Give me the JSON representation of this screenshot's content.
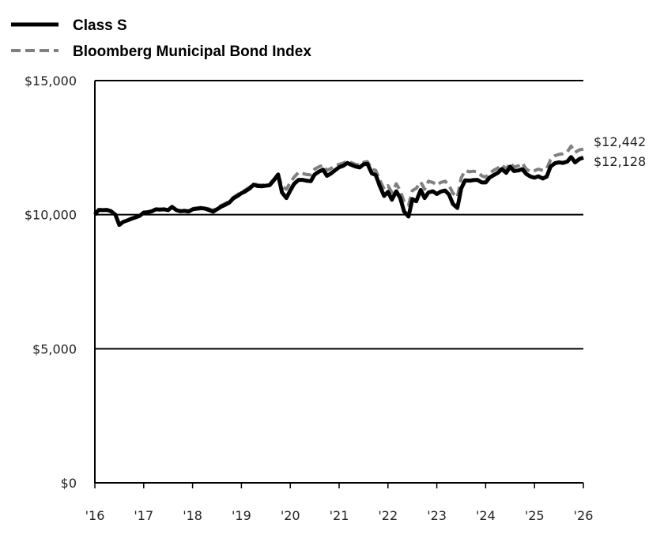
{
  "chart_data": {
    "type": "line",
    "title": "",
    "xlabel": "",
    "ylabel": "",
    "ylim": [
      0,
      15000
    ],
    "xlim": [
      2016,
      2026
    ],
    "y_ticks": [
      0,
      5000,
      10000,
      15000
    ],
    "y_tick_labels": [
      "$0",
      "$5,000",
      "$10,000",
      "$15,000"
    ],
    "x_ticks": [
      2016,
      2017,
      2018,
      2019,
      2020,
      2021,
      2022,
      2023,
      2024,
      2025,
      2026
    ],
    "x_tick_labels": [
      "'16",
      "'17",
      "'18",
      "'19",
      "'20",
      "'21",
      "'22",
      "'23",
      "'24",
      "'25",
      "'26"
    ],
    "grid": "horizontal",
    "legend_position": "top-left",
    "series": [
      {
        "name": "Class S",
        "style": "solid",
        "color": "#000000",
        "end_label": "$12,128",
        "points": [
          [
            2016.0,
            10000
          ],
          [
            2016.08,
            10180
          ],
          [
            2016.17,
            10170
          ],
          [
            2016.25,
            10180
          ],
          [
            2016.33,
            10130
          ],
          [
            2016.42,
            10000
          ],
          [
            2016.5,
            9620
          ],
          [
            2016.58,
            9730
          ],
          [
            2016.67,
            9790
          ],
          [
            2016.75,
            9850
          ],
          [
            2016.83,
            9900
          ],
          [
            2016.92,
            9960
          ],
          [
            2017.0,
            10080
          ],
          [
            2017.08,
            10090
          ],
          [
            2017.17,
            10130
          ],
          [
            2017.25,
            10200
          ],
          [
            2017.33,
            10190
          ],
          [
            2017.42,
            10200
          ],
          [
            2017.5,
            10170
          ],
          [
            2017.58,
            10290
          ],
          [
            2017.67,
            10170
          ],
          [
            2017.75,
            10130
          ],
          [
            2017.83,
            10140
          ],
          [
            2017.92,
            10120
          ],
          [
            2018.0,
            10200
          ],
          [
            2018.08,
            10220
          ],
          [
            2018.17,
            10240
          ],
          [
            2018.25,
            10230
          ],
          [
            2018.33,
            10180
          ],
          [
            2018.42,
            10110
          ],
          [
            2018.5,
            10200
          ],
          [
            2018.58,
            10290
          ],
          [
            2018.67,
            10370
          ],
          [
            2018.75,
            10450
          ],
          [
            2018.83,
            10600
          ],
          [
            2018.92,
            10700
          ],
          [
            2019.0,
            10800
          ],
          [
            2019.08,
            10870
          ],
          [
            2019.17,
            10980
          ],
          [
            2019.25,
            11120
          ],
          [
            2019.33,
            11070
          ],
          [
            2019.42,
            11060
          ],
          [
            2019.5,
            11080
          ],
          [
            2019.58,
            11100
          ],
          [
            2019.67,
            11300
          ],
          [
            2019.75,
            11500
          ],
          [
            2019.83,
            10830
          ],
          [
            2019.92,
            10620
          ],
          [
            2020.0,
            10900
          ],
          [
            2020.08,
            11150
          ],
          [
            2020.17,
            11300
          ],
          [
            2020.25,
            11300
          ],
          [
            2020.33,
            11270
          ],
          [
            2020.42,
            11250
          ],
          [
            2020.5,
            11500
          ],
          [
            2020.58,
            11600
          ],
          [
            2020.67,
            11680
          ],
          [
            2020.75,
            11450
          ],
          [
            2020.83,
            11530
          ],
          [
            2020.92,
            11660
          ],
          [
            2021.0,
            11770
          ],
          [
            2021.08,
            11820
          ],
          [
            2021.17,
            11930
          ],
          [
            2021.25,
            11860
          ],
          [
            2021.33,
            11800
          ],
          [
            2021.42,
            11760
          ],
          [
            2021.5,
            11880
          ],
          [
            2021.58,
            11900
          ],
          [
            2021.67,
            11540
          ],
          [
            2021.75,
            11480
          ],
          [
            2021.83,
            11080
          ],
          [
            2021.92,
            10700
          ],
          [
            2022.0,
            10850
          ],
          [
            2022.08,
            10560
          ],
          [
            2022.17,
            10870
          ],
          [
            2022.25,
            10620
          ],
          [
            2022.33,
            10120
          ],
          [
            2022.42,
            9930
          ],
          [
            2022.5,
            10580
          ],
          [
            2022.58,
            10500
          ],
          [
            2022.67,
            10920
          ],
          [
            2022.75,
            10620
          ],
          [
            2022.83,
            10830
          ],
          [
            2022.92,
            10870
          ],
          [
            2023.0,
            10770
          ],
          [
            2023.08,
            10860
          ],
          [
            2023.17,
            10900
          ],
          [
            2023.25,
            10750
          ],
          [
            2023.33,
            10400
          ],
          [
            2023.42,
            10250
          ],
          [
            2023.5,
            10980
          ],
          [
            2023.58,
            11280
          ],
          [
            2023.67,
            11270
          ],
          [
            2023.75,
            11290
          ],
          [
            2023.83,
            11300
          ],
          [
            2023.92,
            11200
          ],
          [
            2024.0,
            11200
          ],
          [
            2024.08,
            11380
          ],
          [
            2024.17,
            11480
          ],
          [
            2024.25,
            11560
          ],
          [
            2024.33,
            11700
          ],
          [
            2024.42,
            11560
          ],
          [
            2024.5,
            11790
          ],
          [
            2024.58,
            11630
          ],
          [
            2024.67,
            11650
          ],
          [
            2024.75,
            11700
          ],
          [
            2024.83,
            11520
          ],
          [
            2024.92,
            11420
          ],
          [
            2025.0,
            11380
          ],
          [
            2025.08,
            11430
          ],
          [
            2025.17,
            11350
          ],
          [
            2025.25,
            11420
          ],
          [
            2025.33,
            11800
          ],
          [
            2025.42,
            11920
          ],
          [
            2025.5,
            11950
          ],
          [
            2025.58,
            11930
          ],
          [
            2025.67,
            11980
          ],
          [
            2025.75,
            12150
          ],
          [
            2025.83,
            11950
          ],
          [
            2025.92,
            12080
          ],
          [
            2026.0,
            12128
          ]
        ]
      },
      {
        "name": "Bloomberg Municipal Bond Index",
        "style": "dashed",
        "color": "#808080",
        "end_label": "$12,442",
        "points": [
          [
            2016.0,
            10000
          ],
          [
            2016.08,
            10170
          ],
          [
            2016.17,
            10160
          ],
          [
            2016.25,
            10170
          ],
          [
            2016.33,
            10120
          ],
          [
            2016.42,
            10000
          ],
          [
            2016.5,
            9650
          ],
          [
            2016.58,
            9740
          ],
          [
            2016.67,
            9800
          ],
          [
            2016.75,
            9860
          ],
          [
            2016.83,
            9910
          ],
          [
            2016.92,
            9970
          ],
          [
            2017.0,
            10090
          ],
          [
            2017.08,
            10100
          ],
          [
            2017.17,
            10140
          ],
          [
            2017.25,
            10210
          ],
          [
            2017.33,
            10200
          ],
          [
            2017.42,
            10210
          ],
          [
            2017.5,
            10180
          ],
          [
            2017.58,
            10290
          ],
          [
            2017.67,
            10180
          ],
          [
            2017.75,
            10150
          ],
          [
            2017.83,
            10160
          ],
          [
            2017.92,
            10150
          ],
          [
            2018.0,
            10230
          ],
          [
            2018.08,
            10250
          ],
          [
            2018.17,
            10270
          ],
          [
            2018.25,
            10260
          ],
          [
            2018.33,
            10220
          ],
          [
            2018.42,
            10160
          ],
          [
            2018.5,
            10250
          ],
          [
            2018.58,
            10340
          ],
          [
            2018.67,
            10420
          ],
          [
            2018.75,
            10500
          ],
          [
            2018.83,
            10640
          ],
          [
            2018.92,
            10750
          ],
          [
            2019.0,
            10850
          ],
          [
            2019.08,
            10920
          ],
          [
            2019.17,
            11030
          ],
          [
            2019.25,
            11160
          ],
          [
            2019.33,
            11120
          ],
          [
            2019.42,
            11100
          ],
          [
            2019.5,
            11130
          ],
          [
            2019.58,
            11150
          ],
          [
            2019.67,
            11330
          ],
          [
            2019.75,
            11520
          ],
          [
            2019.83,
            11050
          ],
          [
            2019.92,
            10950
          ],
          [
            2020.0,
            11200
          ],
          [
            2020.08,
            11400
          ],
          [
            2020.17,
            11580
          ],
          [
            2020.25,
            11540
          ],
          [
            2020.33,
            11500
          ],
          [
            2020.42,
            11480
          ],
          [
            2020.5,
            11700
          ],
          [
            2020.58,
            11780
          ],
          [
            2020.67,
            11850
          ],
          [
            2020.75,
            11650
          ],
          [
            2020.83,
            11720
          ],
          [
            2020.92,
            11820
          ],
          [
            2021.0,
            11880
          ],
          [
            2021.08,
            11920
          ],
          [
            2021.17,
            12000
          ],
          [
            2021.25,
            11940
          ],
          [
            2021.33,
            11880
          ],
          [
            2021.42,
            11850
          ],
          [
            2021.5,
            11960
          ],
          [
            2021.58,
            11980
          ],
          [
            2021.67,
            11700
          ],
          [
            2021.75,
            11650
          ],
          [
            2021.83,
            11300
          ],
          [
            2021.92,
            10950
          ],
          [
            2022.0,
            11080
          ],
          [
            2022.08,
            10830
          ],
          [
            2022.17,
            11150
          ],
          [
            2022.25,
            10900
          ],
          [
            2022.33,
            10480
          ],
          [
            2022.42,
            10350
          ],
          [
            2022.5,
            10900
          ],
          [
            2022.58,
            10980
          ],
          [
            2022.67,
            11220
          ],
          [
            2022.75,
            10950
          ],
          [
            2022.83,
            11250
          ],
          [
            2022.92,
            11200
          ],
          [
            2023.0,
            11100
          ],
          [
            2023.08,
            11200
          ],
          [
            2023.17,
            11250
          ],
          [
            2023.25,
            11100
          ],
          [
            2023.33,
            10800
          ],
          [
            2023.42,
            10650
          ],
          [
            2023.5,
            11380
          ],
          [
            2023.58,
            11640
          ],
          [
            2023.67,
            11600
          ],
          [
            2023.75,
            11620
          ],
          [
            2023.83,
            11600
          ],
          [
            2023.92,
            11450
          ],
          [
            2024.0,
            11400
          ],
          [
            2024.08,
            11550
          ],
          [
            2024.17,
            11660
          ],
          [
            2024.25,
            11740
          ],
          [
            2024.33,
            11860
          ],
          [
            2024.42,
            11700
          ],
          [
            2024.5,
            11930
          ],
          [
            2024.58,
            11780
          ],
          [
            2024.67,
            11820
          ],
          [
            2024.75,
            11920
          ],
          [
            2024.83,
            11700
          ],
          [
            2024.92,
            11600
          ],
          [
            2025.0,
            11640
          ],
          [
            2025.08,
            11700
          ],
          [
            2025.17,
            11650
          ],
          [
            2025.25,
            11720
          ],
          [
            2025.33,
            12050
          ],
          [
            2025.42,
            12200
          ],
          [
            2025.5,
            12250
          ],
          [
            2025.58,
            12270
          ],
          [
            2025.67,
            12340
          ],
          [
            2025.75,
            12560
          ],
          [
            2025.83,
            12320
          ],
          [
            2025.92,
            12420
          ],
          [
            2026.0,
            12442
          ]
        ]
      }
    ]
  }
}
